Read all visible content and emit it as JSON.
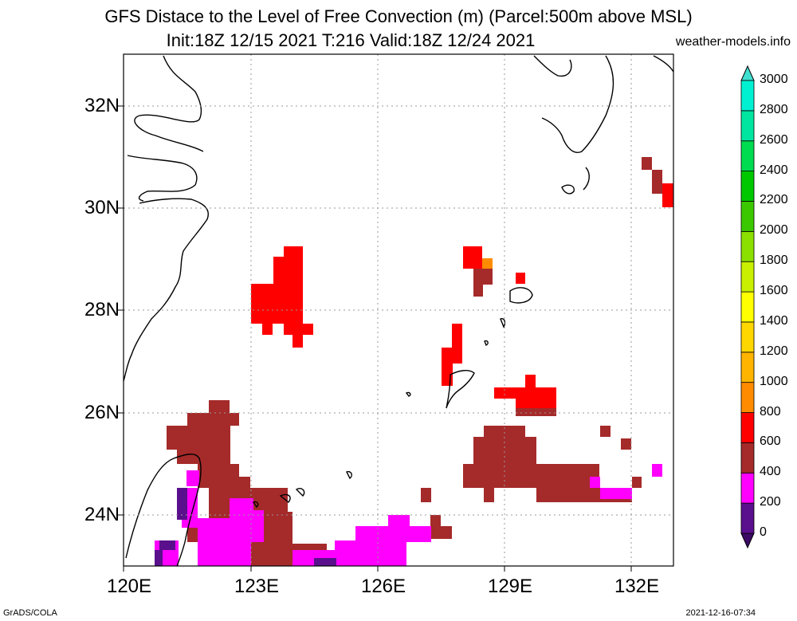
{
  "title_line1": "GFS Distace to the Level of Free Convection (m) (Parcel:500m above MSL)",
  "title_line2": "Init:18Z 12/15 2021 T:216 Valid:18Z 12/24 2021",
  "source": "weather-models.info",
  "footer_left": "GrADS/COLA",
  "footer_right": "2021-12-16-07:34",
  "lat_labels": [
    "32N",
    "30N",
    "28N",
    "26N",
    "24N"
  ],
  "lon_labels": [
    "120E",
    "123E",
    "126E",
    "129E",
    "132E"
  ],
  "colorbar": {
    "levels": [
      "0",
      "200",
      "400",
      "600",
      "800",
      "1000",
      "1200",
      "1400",
      "1600",
      "1800",
      "2000",
      "2200",
      "2400",
      "2600",
      "2800",
      "3000"
    ],
    "colors": [
      "#5a0f8c",
      "#ff00ff",
      "#a52a2a",
      "#ff0000",
      "#ff8c00",
      "#ffb400",
      "#ffd700",
      "#ffff00",
      "#c8f000",
      "#8ce000",
      "#3cc800",
      "#00c800",
      "#00dc50",
      "#00e6a0",
      "#00f0d2",
      "#00ffff"
    ],
    "under_color": "#3c0a64",
    "over_color": "#40e0d0"
  },
  "colors": {
    "magenta": "#ff00ff",
    "brown": "#a52a2a",
    "red": "#ff0000",
    "orange": "#ff8c00",
    "purple": "#5a0f8c",
    "coast": "#000000",
    "grid": "#aaaaaa"
  }
}
